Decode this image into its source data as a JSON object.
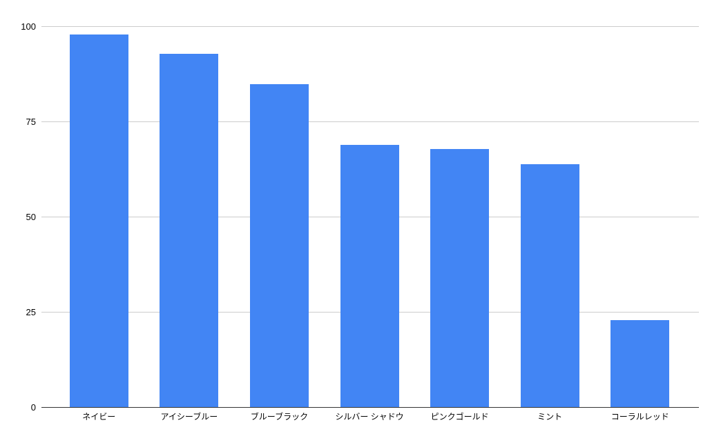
{
  "chart_data": {
    "type": "bar",
    "title": "",
    "xlabel": "",
    "ylabel": "",
    "categories": [
      "ネイビー",
      "アイシーブルー",
      "ブルーブラック",
      "シルバー シャドウ",
      "ピンクゴールド",
      "ミント",
      "コーラルレッド"
    ],
    "values": [
      98,
      93,
      85,
      69,
      68,
      64,
      23
    ],
    "ylim": [
      0,
      100
    ],
    "yticks": [
      0,
      25,
      50,
      75,
      100
    ],
    "grid": true,
    "legend": "none",
    "colors": {
      "bar": "#4285f4",
      "gridline": "#cccccc",
      "axis_baseline": "#333333",
      "tick_label": "#000000",
      "background": "#ffffff"
    }
  }
}
